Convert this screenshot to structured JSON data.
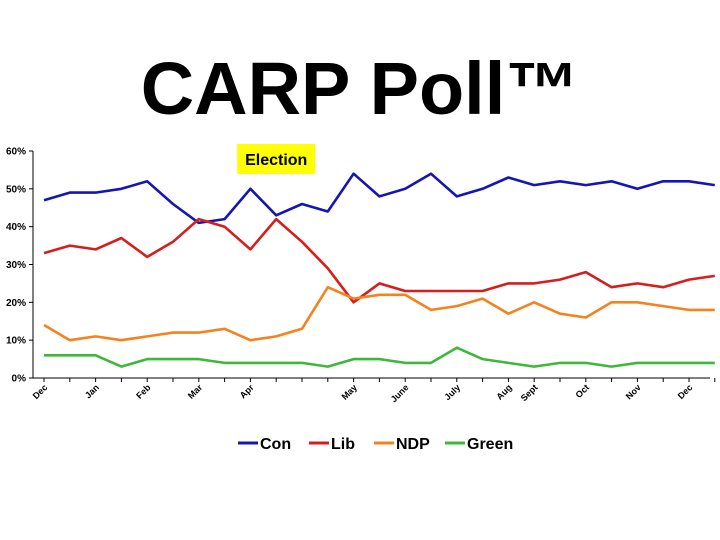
{
  "chart_data": {
    "type": "line",
    "title": "CARP Poll™",
    "ylim": [
      0,
      60
    ],
    "yticks": [
      "0%",
      "10%",
      "20%",
      "30%",
      "40%",
      "50%",
      "60%"
    ],
    "ytick_values": [
      0,
      10,
      20,
      30,
      40,
      50,
      60
    ],
    "x_tick_labels": [
      {
        "label": "Dec",
        "index": 0
      },
      {
        "label": "Jan",
        "index": 2
      },
      {
        "label": "Feb",
        "index": 4
      },
      {
        "label": "Mar",
        "index": 6
      },
      {
        "label": "Apr",
        "index": 8
      },
      {
        "label": "May",
        "index": 12
      },
      {
        "label": "June",
        "index": 14
      },
      {
        "label": "July",
        "index": 16
      },
      {
        "label": "Aug",
        "index": 18
      },
      {
        "label": "Sept",
        "index": 19
      },
      {
        "label": "Oct",
        "index": 21
      },
      {
        "label": "Nov",
        "index": 23
      },
      {
        "label": "Dec",
        "index": 25
      }
    ],
    "series": [
      {
        "name": "Con",
        "color": "#1515b4",
        "values": [
          47,
          49,
          49,
          50,
          52,
          46,
          41,
          42,
          50,
          43,
          46,
          44,
          54,
          48,
          50,
          54,
          48,
          50,
          53,
          51,
          52,
          51,
          52,
          50,
          52,
          52,
          51
        ]
      },
      {
        "name": "Lib",
        "color": "#d41f1f",
        "values": [
          33,
          35,
          34,
          37,
          32,
          36,
          42,
          40,
          34,
          42,
          36,
          29,
          20,
          25,
          23,
          23,
          23,
          23,
          25,
          25,
          26,
          28,
          24,
          25,
          24,
          26,
          27
        ]
      },
      {
        "name": "NDP",
        "color": "#f5821f",
        "values": [
          14,
          10,
          11,
          10,
          11,
          12,
          12,
          13,
          10,
          11,
          13,
          24,
          21,
          22,
          22,
          18,
          19,
          21,
          17,
          20,
          17,
          16,
          20,
          20,
          19,
          18,
          18
        ]
      },
      {
        "name": "Green",
        "color": "#3db83a",
        "values": [
          6,
          6,
          6,
          3,
          5,
          5,
          5,
          4,
          4,
          4,
          4,
          3,
          5,
          5,
          4,
          4,
          8,
          5,
          4,
          3,
          4,
          4,
          3,
          4,
          4,
          4,
          4
        ]
      }
    ],
    "annotation": {
      "text": "Election",
      "index": 9,
      "highlight": "#ffff00"
    },
    "legend_position": "bottom"
  }
}
